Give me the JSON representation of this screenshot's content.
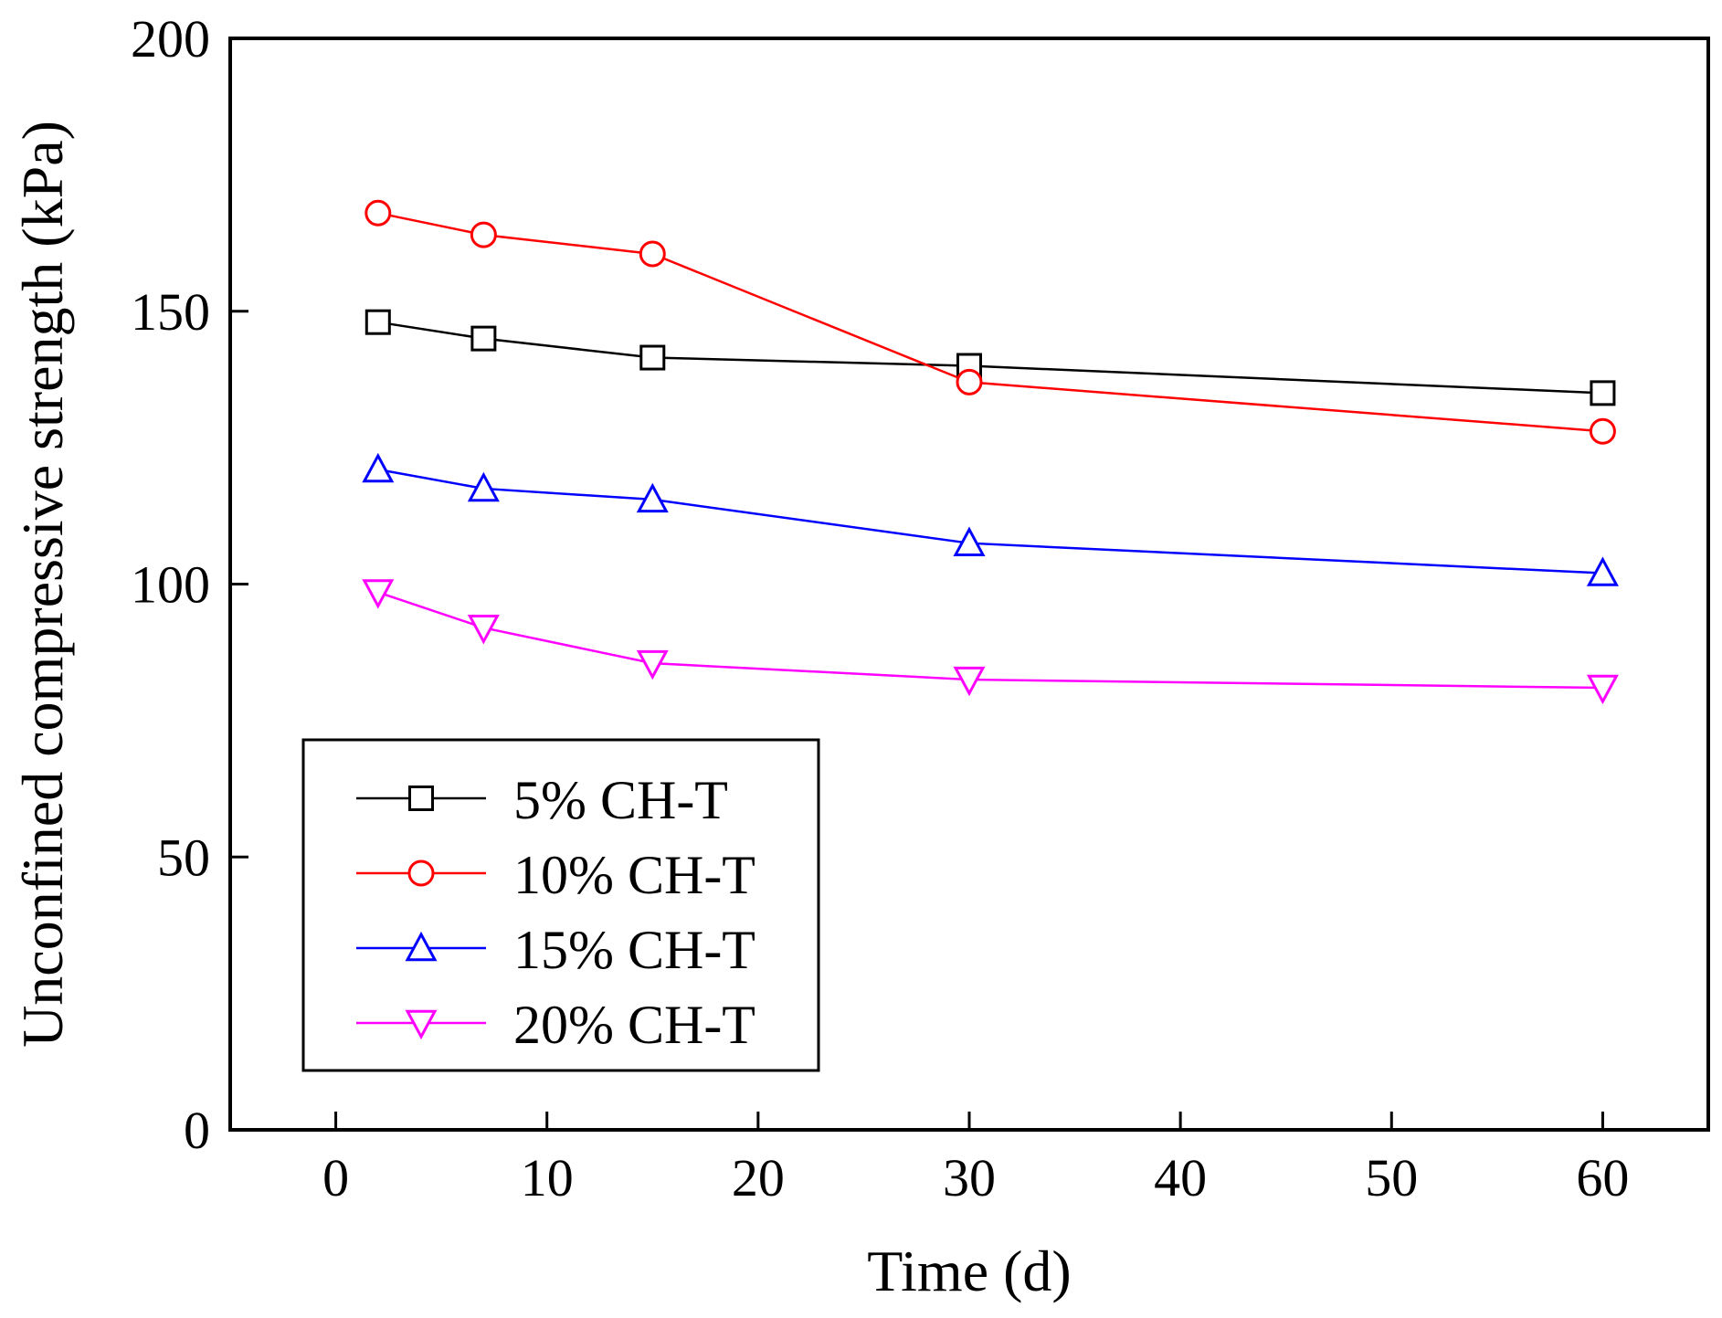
{
  "chart_data": {
    "type": "line",
    "title": "",
    "xlabel": "Time (d)",
    "ylabel": "Unconfined compressive strength (kPa)",
    "xlim": [
      -5,
      65
    ],
    "ylim": [
      0,
      200
    ],
    "xticks": [
      0,
      10,
      20,
      30,
      40,
      50,
      60
    ],
    "yticks": [
      0,
      50,
      100,
      150,
      200
    ],
    "x": [
      2,
      7,
      15,
      30,
      60
    ],
    "grid": false,
    "legend_position": "bottom-left",
    "series": [
      {
        "name": "5% CH-T",
        "color": "#000000",
        "marker": "square",
        "values": [
          148,
          145,
          141.5,
          140,
          135
        ]
      },
      {
        "name": "10% CH-T",
        "color": "#ff0000",
        "marker": "circle",
        "values": [
          168,
          164,
          160.5,
          137,
          128
        ]
      },
      {
        "name": "15% CH-T",
        "color": "#0000ff",
        "marker": "triangle-up",
        "values": [
          121,
          117.5,
          115.5,
          107.5,
          102
        ]
      },
      {
        "name": "20% CH-T",
        "color": "#ff00ff",
        "marker": "triangle-down",
        "values": [
          98.5,
          92,
          85.5,
          82.5,
          81
        ]
      }
    ]
  }
}
